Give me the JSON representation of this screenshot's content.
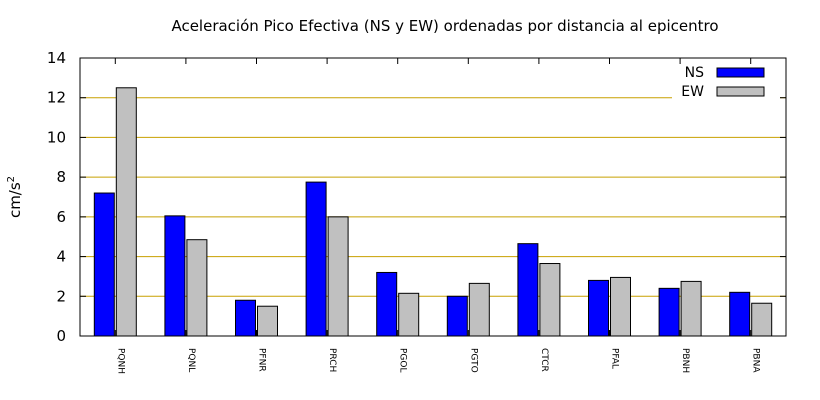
{
  "chart_data": {
    "type": "bar",
    "title": "Aceleración Pico Efectiva (NS y EW) ordenadas por distancia al epicentro",
    "ylabel": "cm/s",
    "ylabel_superscript": "2",
    "xlabel": "",
    "ylim": [
      0,
      14
    ],
    "yticks": [
      0,
      2,
      4,
      6,
      8,
      10,
      12,
      14
    ],
    "grid": "horizontal",
    "grid_color": "#c8a000",
    "legend_position": "top-right",
    "categories": [
      "PQNH",
      "PQNL",
      "PFNR",
      "PRCH",
      "PGOL",
      "PGTO",
      "CTCR",
      "PFAL",
      "PBNH",
      "PBNA"
    ],
    "series": [
      {
        "name": "NS",
        "color": "#0000ff",
        "values": [
          7.2,
          6.05,
          1.8,
          7.75,
          3.2,
          2.0,
          4.65,
          2.8,
          2.4,
          2.2
        ]
      },
      {
        "name": "EW",
        "color": "#c0c0c0",
        "values": [
          12.5,
          4.85,
          1.5,
          6.0,
          2.15,
          2.65,
          3.65,
          2.95,
          2.75,
          1.65
        ]
      }
    ]
  }
}
